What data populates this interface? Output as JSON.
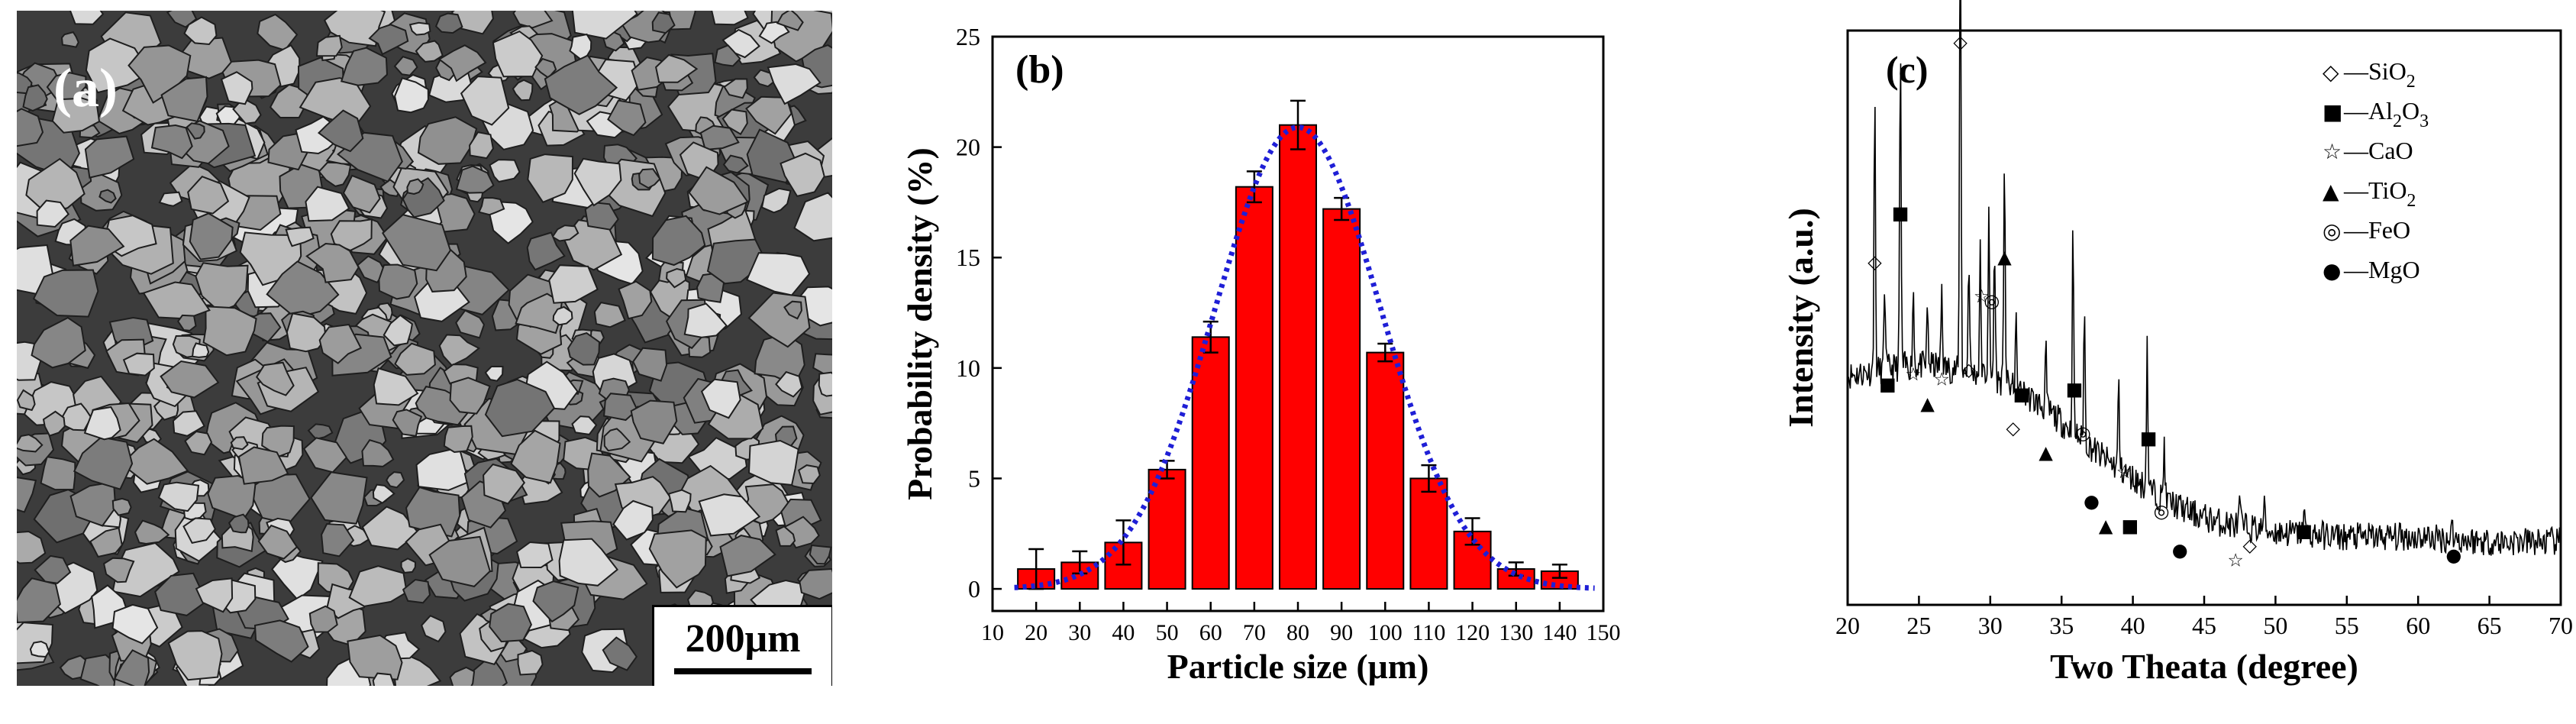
{
  "panels": {
    "a": {
      "label": "(a)",
      "scale_bar": "200μm"
    },
    "b": {
      "label": "(b)"
    },
    "c": {
      "label": "(c)"
    }
  },
  "chart_data": [
    {
      "id": "b",
      "type": "bar",
      "title": "",
      "xlabel": "Particle size (μm)",
      "ylabel": "Probability density (%)",
      "xlim": [
        10,
        150
      ],
      "ylim": [
        -1,
        25
      ],
      "xticks": [
        10,
        20,
        30,
        40,
        50,
        60,
        70,
        80,
        90,
        100,
        110,
        120,
        130,
        140,
        150
      ],
      "yticks": [
        0,
        5,
        10,
        15,
        20,
        25
      ],
      "categories": [
        20,
        30,
        40,
        50,
        60,
        70,
        80,
        90,
        100,
        110,
        120,
        130,
        140
      ],
      "values": [
        0.9,
        1.2,
        2.1,
        5.4,
        11.4,
        18.2,
        21.0,
        17.2,
        10.7,
        5.0,
        2.6,
        0.9,
        0.8
      ],
      "errors": [
        0.9,
        0.5,
        1.0,
        0.4,
        0.7,
        0.7,
        1.1,
        0.5,
        0.4,
        0.6,
        0.6,
        0.3,
        0.3
      ],
      "bar_color": "#ff0000",
      "fit": {
        "type": "gaussian",
        "mean": 80,
        "sigma": 19,
        "peak": 20.9,
        "color": "#1f1fd6",
        "style": "dotted"
      }
    },
    {
      "id": "c",
      "type": "line",
      "title": "",
      "xlabel": "Two Theata (degree)",
      "ylabel": "Intensity (a.u.)",
      "xlim": [
        20,
        70
      ],
      "xticks": [
        20,
        25,
        30,
        35,
        40,
        45,
        50,
        55,
        60,
        65,
        70
      ],
      "legend_position": "top-right",
      "legend": [
        {
          "symbol": "◇",
          "label": "SiO",
          "sub": "2"
        },
        {
          "symbol": "■",
          "label": "Al",
          "sub": "2",
          "label2": "O",
          "sub2": "3"
        },
        {
          "symbol": "☆",
          "label": "CaO",
          "sub": ""
        },
        {
          "symbol": "▲",
          "label": "TiO",
          "sub": "2"
        },
        {
          "symbol": "◎",
          "label": "FeO",
          "sub": ""
        },
        {
          "symbol": "●",
          "label": "MgO",
          "sub": ""
        }
      ],
      "background_pattern": [
        [
          20.0,
          0.38
        ],
        [
          22.0,
          0.39
        ],
        [
          24.0,
          0.4
        ],
        [
          26.0,
          0.4
        ],
        [
          28.0,
          0.39
        ],
        [
          30.0,
          0.38
        ],
        [
          32.0,
          0.35
        ],
        [
          34.0,
          0.31
        ],
        [
          36.0,
          0.26
        ],
        [
          38.0,
          0.21
        ],
        [
          40.0,
          0.17
        ],
        [
          42.0,
          0.13
        ],
        [
          44.0,
          0.1
        ],
        [
          46.0,
          0.08
        ],
        [
          50.0,
          0.06
        ],
        [
          55.0,
          0.05
        ],
        [
          60.0,
          0.05
        ],
        [
          65.0,
          0.04
        ],
        [
          70.0,
          0.04
        ]
      ],
      "peaks": [
        [
          21.9,
          0.56
        ],
        [
          22.6,
          0.18
        ],
        [
          23.7,
          0.66
        ],
        [
          24.6,
          0.16
        ],
        [
          25.6,
          0.12
        ],
        [
          26.6,
          0.17
        ],
        [
          27.9,
          1.0
        ],
        [
          28.5,
          0.24
        ],
        [
          29.3,
          0.25
        ],
        [
          29.9,
          0.32
        ],
        [
          30.3,
          0.28
        ],
        [
          31.0,
          0.48
        ],
        [
          31.8,
          0.14
        ],
        [
          33.9,
          0.12
        ],
        [
          35.8,
          0.42
        ],
        [
          36.6,
          0.27
        ],
        [
          39.0,
          0.18
        ],
        [
          41.0,
          0.3
        ],
        [
          42.2,
          0.12
        ],
        [
          47.5,
          0.05
        ],
        [
          49.2,
          0.06
        ],
        [
          52.0,
          0.06
        ],
        [
          62.4,
          0.04
        ]
      ],
      "markers": [
        {
          "symbol": "◇",
          "x": 21.9,
          "y": 0.6
        },
        {
          "symbol": "■",
          "x": 22.8,
          "y": 0.35
        },
        {
          "symbol": "■",
          "x": 23.7,
          "y": 0.7
        },
        {
          "symbol": "☆",
          "x": 24.6,
          "y": 0.37
        },
        {
          "symbol": "▲",
          "x": 25.6,
          "y": 0.31
        },
        {
          "symbol": "☆",
          "x": 26.6,
          "y": 0.36
        },
        {
          "symbol": "◇",
          "x": 27.9,
          "y": 1.05
        },
        {
          "symbol": "◇",
          "x": 28.5,
          "y": 0.38
        },
        {
          "symbol": "☆",
          "x": 29.4,
          "y": 0.53
        },
        {
          "symbol": "◎",
          "x": 30.1,
          "y": 0.52
        },
        {
          "symbol": "▲",
          "x": 31.0,
          "y": 0.61
        },
        {
          "symbol": "◇",
          "x": 31.6,
          "y": 0.26
        },
        {
          "symbol": "■",
          "x": 32.2,
          "y": 0.33
        },
        {
          "symbol": "▲",
          "x": 33.9,
          "y": 0.21
        },
        {
          "symbol": "■",
          "x": 35.9,
          "y": 0.34
        },
        {
          "symbol": "◎",
          "x": 36.5,
          "y": 0.25
        },
        {
          "symbol": "●",
          "x": 37.1,
          "y": 0.11
        },
        {
          "symbol": "▲",
          "x": 38.1,
          "y": 0.06
        },
        {
          "symbol": "☆",
          "x": 39.4,
          "y": 0.17
        },
        {
          "symbol": "■",
          "x": 39.8,
          "y": 0.06
        },
        {
          "symbol": "■",
          "x": 41.1,
          "y": 0.24
        },
        {
          "symbol": "◎",
          "x": 42.0,
          "y": 0.09
        },
        {
          "symbol": "●",
          "x": 43.3,
          "y": 0.01
        },
        {
          "symbol": "☆",
          "x": 47.2,
          "y": -0.01
        },
        {
          "symbol": "◇",
          "x": 48.2,
          "y": 0.02
        },
        {
          "symbol": "■",
          "x": 52.0,
          "y": 0.05
        },
        {
          "symbol": "●",
          "x": 62.5,
          "y": 0.0
        }
      ]
    }
  ]
}
